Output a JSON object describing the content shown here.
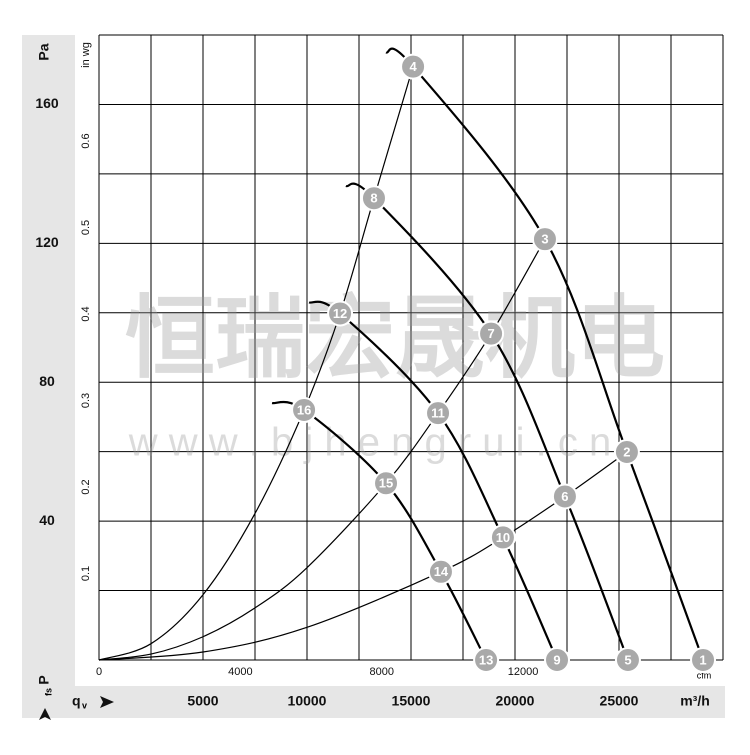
{
  "chart_data": {
    "type": "line",
    "watermark": "恒瑞宏晟机电",
    "watermark_url": "w w w . b j h e n g r u i . c n",
    "y_label": "Pa",
    "y_axis_name": "P",
    "y_axis_sub": "fs",
    "x_axis_name": "q",
    "x_axis_sub": "v",
    "x_label": "m³/h",
    "x2_label": "cfm",
    "y2_label": "in wg",
    "xlim": [
      0,
      30000
    ],
    "ylim": [
      0,
      180
    ],
    "xticks": [
      5000,
      10000,
      15000,
      20000,
      25000
    ],
    "yticks": [
      40,
      80,
      120,
      160
    ],
    "xgrid": [
      0,
      2500,
      5000,
      7500,
      10000,
      12500,
      15000,
      17500,
      20000,
      22500,
      25000,
      27500,
      30000
    ],
    "ygrid": [
      0,
      20,
      40,
      60,
      80,
      100,
      120,
      140,
      160,
      180
    ],
    "x2lim": [
      0,
      17657
    ],
    "x2ticks": [
      0,
      4000,
      8000,
      12000
    ],
    "y2lim": [
      0,
      0.7226
    ],
    "y2ticks": [
      0.1,
      0.2,
      0.3,
      0.4,
      0.5,
      0.6
    ],
    "color": "#000000",
    "point_color": "#a9a9a9",
    "series": [
      {
        "x": [
          13800,
          15100,
          21440,
          25380,
          29040
        ],
        "values": [
          175,
          170.9,
          121.2,
          59.9,
          0
        ]
      },
      {
        "x": [
          11870,
          13220,
          18850,
          22400,
          25430
        ],
        "values": [
          136.5,
          133,
          94,
          47.1,
          0
        ]
      },
      {
        "x": [
          10100,
          11590,
          16300,
          19420,
          22020
        ],
        "values": [
          103,
          99.8,
          71.1,
          35.3,
          0
        ]
      },
      {
        "x": [
          8320,
          9860,
          13800,
          16440,
          18610
        ],
        "values": [
          74,
          72,
          50.9,
          25.4,
          0
        ]
      },
      {
        "x": [
          0,
          2500,
          5000,
          7500,
          9860,
          11590,
          13220,
          15100
        ],
        "values": [
          0,
          4.7,
          18.8,
          42.2,
          72,
          99.8,
          133,
          170.9
        ]
      },
      {
        "x": [
          0,
          2500,
          5000,
          7500,
          10000,
          13800,
          16300,
          18850,
          21440
        ],
        "values": [
          0,
          1.7,
          6.7,
          15,
          26.6,
          50.9,
          71.1,
          94,
          121.2
        ]
      },
      {
        "x": [
          0,
          5000,
          10000,
          16440,
          19420,
          22400,
          25380
        ],
        "values": [
          0,
          2.3,
          9.4,
          25.4,
          35.3,
          47.1,
          59.9
        ]
      }
    ],
    "points": [
      {
        "label": "1",
        "x": 29040,
        "y": 0
      },
      {
        "label": "2",
        "x": 25380,
        "y": 59.9
      },
      {
        "label": "3",
        "x": 21440,
        "y": 121.2
      },
      {
        "label": "4",
        "x": 15100,
        "y": 170.9
      },
      {
        "label": "5",
        "x": 25430,
        "y": 0
      },
      {
        "label": "6",
        "x": 22400,
        "y": 47.1
      },
      {
        "label": "7",
        "x": 18850,
        "y": 94
      },
      {
        "label": "8",
        "x": 13220,
        "y": 133
      },
      {
        "label": "9",
        "x": 22020,
        "y": 0
      },
      {
        "label": "10",
        "x": 19420,
        "y": 35.3
      },
      {
        "label": "11",
        "x": 16300,
        "y": 71.1
      },
      {
        "label": "12",
        "x": 11590,
        "y": 99.8
      },
      {
        "label": "13",
        "x": 18610,
        "y": 0
      },
      {
        "label": "14",
        "x": 16440,
        "y": 25.4
      },
      {
        "label": "15",
        "x": 13800,
        "y": 50.9
      },
      {
        "label": "16",
        "x": 9860,
        "y": 72
      }
    ]
  }
}
